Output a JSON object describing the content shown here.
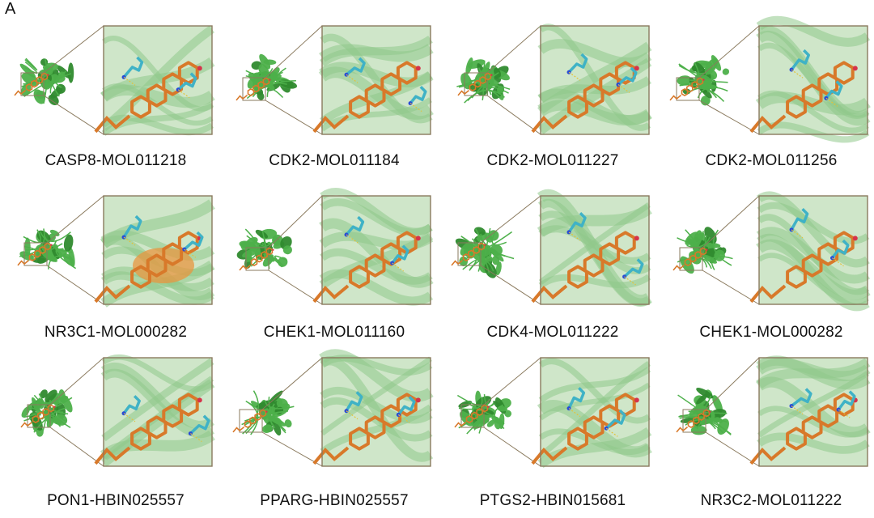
{
  "panel_label": "A",
  "colors": {
    "protein": "#4db04a",
    "protein_dark": "#2f8a2e",
    "ligand": "#d8792a",
    "residue": "#3fb2c6",
    "frame": "#8a7a5e",
    "zoom_bg": "#cfe6c9"
  },
  "complexes": [
    {
      "label": "CASP8-MOL011218"
    },
    {
      "label": "CDK2-MOL011184"
    },
    {
      "label": "CDK2-MOL011227"
    },
    {
      "label": "CDK2-MOL011256"
    },
    {
      "label": "NR3C1-MOL000282"
    },
    {
      "label": "CHEK1-MOL011160"
    },
    {
      "label": "CDK4-MOL011222"
    },
    {
      "label": "CHEK1-MOL000282"
    },
    {
      "label": "PON1-HBIN025557"
    },
    {
      "label": "PPARG-HBIN025557"
    },
    {
      "label": "PTGS2-HBIN015681"
    },
    {
      "label": "NR3C2-MOL011222"
    }
  ]
}
